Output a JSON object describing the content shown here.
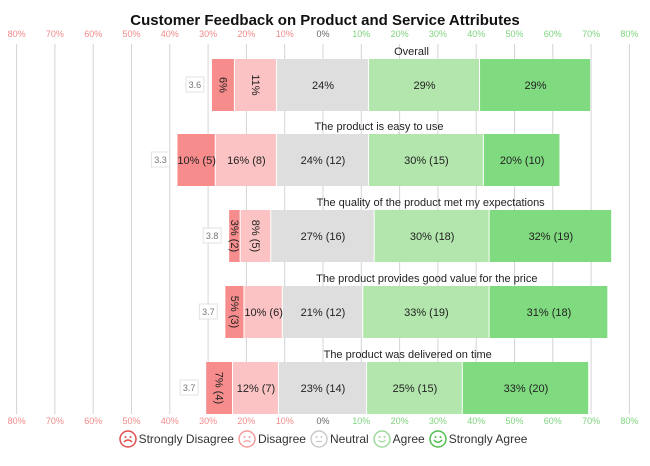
{
  "chart_data": {
    "type": "bar",
    "subtype": "diverging-stacked-likert",
    "title": "Customer Feedback on Product and Service Attributes",
    "xlim": [
      -80,
      80
    ],
    "x_ticks": [
      "80%",
      "70%",
      "60%",
      "50%",
      "40%",
      "30%",
      "20%",
      "10%",
      "0%",
      "10%",
      "20%",
      "30%",
      "40%",
      "50%",
      "60%",
      "70%",
      "80%"
    ],
    "grid": true,
    "legend_position": "bottom",
    "categories": [
      "Strongly Disagree",
      "Disagree",
      "Neutral",
      "Agree",
      "Strongly Agree"
    ],
    "colors": {
      "Strongly Disagree": "#f78c8c",
      "Disagree": "#fbc3c3",
      "Neutral": "#dedede",
      "Agree": "#b2e6ac",
      "Strongly Agree": "#80db80"
    },
    "legend_icon_colors": [
      "#e34d4d",
      "#f29a9a",
      "#c9c9c9",
      "#9ed99a",
      "#4fbf4f"
    ],
    "questions": [
      {
        "label": "Overall",
        "mean": "3.6",
        "values": [
          6,
          11,
          24,
          29,
          29
        ],
        "labels": [
          "6%",
          "11%",
          "24%",
          "29%",
          "29%"
        ],
        "rotated": [
          true,
          true,
          false,
          false,
          false
        ]
      },
      {
        "label": "The product is easy to use",
        "mean": "3.3",
        "values": [
          10,
          16,
          24,
          30,
          20
        ],
        "labels": [
          "10% (5)",
          "16% (8)",
          "24% (12)",
          "30% (15)",
          "20% (10)"
        ],
        "rotated": [
          false,
          false,
          false,
          false,
          false
        ]
      },
      {
        "label": "The quality of the product met my expectations",
        "mean": "3.8",
        "values": [
          3,
          8,
          27,
          30,
          32
        ],
        "labels": [
          "3% (2)",
          "8% (5)",
          "27% (16)",
          "30% (18)",
          "32% (19)"
        ],
        "rotated": [
          true,
          true,
          false,
          false,
          false
        ]
      },
      {
        "label": "The product provides good value for the price",
        "mean": "3.7",
        "values": [
          5,
          10,
          21,
          33,
          31
        ],
        "labels": [
          "5% (3)",
          "10% (6)",
          "21% (12)",
          "33% (19)",
          "31% (18)"
        ],
        "rotated": [
          true,
          false,
          false,
          false,
          false
        ]
      },
      {
        "label": "The product was delivered on time",
        "mean": "3.7",
        "values": [
          7,
          12,
          23,
          25,
          33
        ],
        "labels": [
          "7% (4)",
          "12% (7)",
          "23% (14)",
          "25% (15)",
          "33% (20)"
        ],
        "rotated": [
          true,
          false,
          false,
          false,
          false
        ]
      }
    ]
  }
}
